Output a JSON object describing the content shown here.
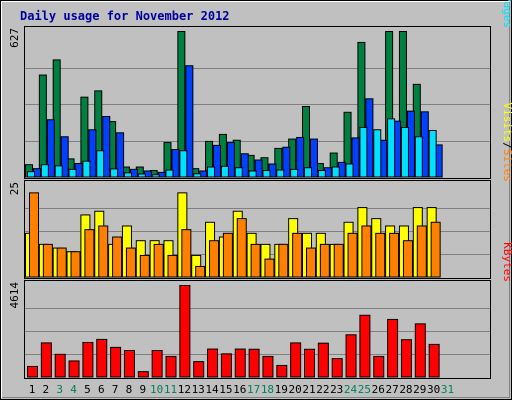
{
  "chart_data": {
    "type": "bar",
    "title": "Daily usage for November 2012",
    "categories": [
      "1",
      "2",
      "3",
      "4",
      "5",
      "6",
      "7",
      "8",
      "9",
      "10",
      "11",
      "12",
      "13",
      "14",
      "15",
      "16",
      "17",
      "18",
      "19",
      "20",
      "21",
      "22",
      "23",
      "24",
      "25",
      "26",
      "27",
      "28",
      "29",
      "30",
      "31"
    ],
    "weekend_days": [
      "3",
      "4",
      "10",
      "11",
      "17",
      "18",
      "24",
      "25",
      "31"
    ],
    "panels": [
      {
        "id": "top",
        "y_tick_label": "627",
        "y_max": 627,
        "legend": [
          "Pages",
          "Files",
          "Hits"
        ],
        "legend_separator": "/",
        "series": [
          {
            "name": "Hits",
            "color": "#008040",
            "values": [
              55,
              440,
              505,
              80,
              345,
              372,
              240,
              45,
              45,
              30,
              150,
              627,
              38,
              155,
              185,
              160,
              95,
              85,
              125,
              165,
              305,
              60,
              105,
              280,
              580,
              190,
              627,
              627,
              400,
              170,
              0
            ]
          },
          {
            "name": "Files",
            "color": "#0040ff",
            "values": [
              38,
              248,
              175,
              60,
              205,
              262,
              192,
              35,
              28,
              22,
              120,
              480,
              28,
              138,
              150,
              102,
              75,
              58,
              130,
              172,
              165,
              42,
              65,
              170,
              338,
              160,
              242,
              285,
              282,
              140,
              0
            ]
          },
          {
            "name": "Pages",
            "color": "#00e0ff",
            "values": [
              25,
              55,
              50,
              35,
              70,
              115,
              37,
              20,
              15,
              12,
              32,
              115,
              16,
              45,
              48,
              42,
              28,
              30,
              32,
              35,
              42,
              30,
              45,
              58,
              215,
              205,
              252,
              215,
              175,
              202,
              0
            ]
          }
        ]
      },
      {
        "id": "middle",
        "y_tick_label": "25",
        "y_max": 25,
        "legend": [
          "Sites",
          "Visits"
        ],
        "legend_separator": "/",
        "series": [
          {
            "name": "Visits",
            "color": "#ffff00",
            "values": [
              12,
              9,
              8,
              7,
              17,
              18,
              9,
              14,
              10,
              10,
              10,
              23,
              6,
              15,
              11,
              18,
              12,
              9,
              9,
              16,
              12,
              12,
              9,
              15,
              19,
              16,
              14,
              14,
              19,
              19,
              0
            ]
          },
          {
            "name": "Sites",
            "color": "#ff8000",
            "values": [
              23,
              9,
              8,
              7,
              13,
              14,
              11,
              8,
              6,
              9,
              6,
              13,
              3,
              10,
              12,
              16,
              9,
              5,
              9,
              12,
              8,
              9,
              9,
              12,
              14,
              12,
              12,
              10,
              14,
              15,
              0
            ]
          }
        ]
      },
      {
        "id": "bottom",
        "y_tick_label": "4614",
        "y_max": 4614,
        "legend": [
          "KBytes"
        ],
        "legend_separator": "",
        "series": [
          {
            "name": "KBytes",
            "color": "#ff0000",
            "values": [
              555,
              1736,
              1162,
              831,
              1757,
              1911,
              1511,
              1354,
              294,
              1354,
              1056,
              4614,
              796,
              1426,
              1187,
              1426,
              1416,
              1056,
              605,
              1736,
              1416,
              1722,
              950,
              2142,
              3122,
              1056,
              2912,
              1895,
              2691,
              1660,
              0
            ]
          }
        ]
      }
    ]
  }
}
